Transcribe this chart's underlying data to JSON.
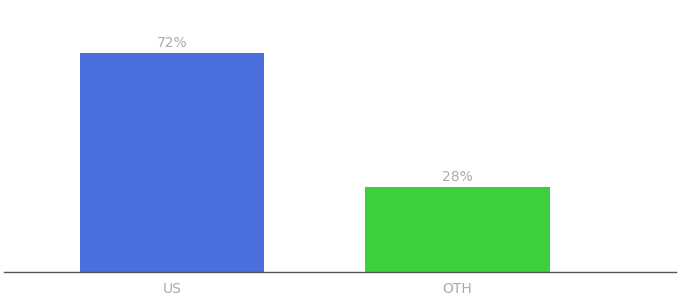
{
  "categories": [
    "US",
    "OTH"
  ],
  "values": [
    72,
    28
  ],
  "bar_colors": [
    "#4a6edb",
    "#3ecf3e"
  ],
  "label_texts": [
    "72%",
    "28%"
  ],
  "background_color": "#ffffff",
  "text_color": "#aaaaaa",
  "label_fontsize": 10,
  "tick_fontsize": 10,
  "ylim": [
    0,
    88
  ],
  "bar_width": 0.22,
  "figsize": [
    6.8,
    3.0
  ],
  "dpi": 100,
  "positions": [
    0.28,
    0.62
  ]
}
